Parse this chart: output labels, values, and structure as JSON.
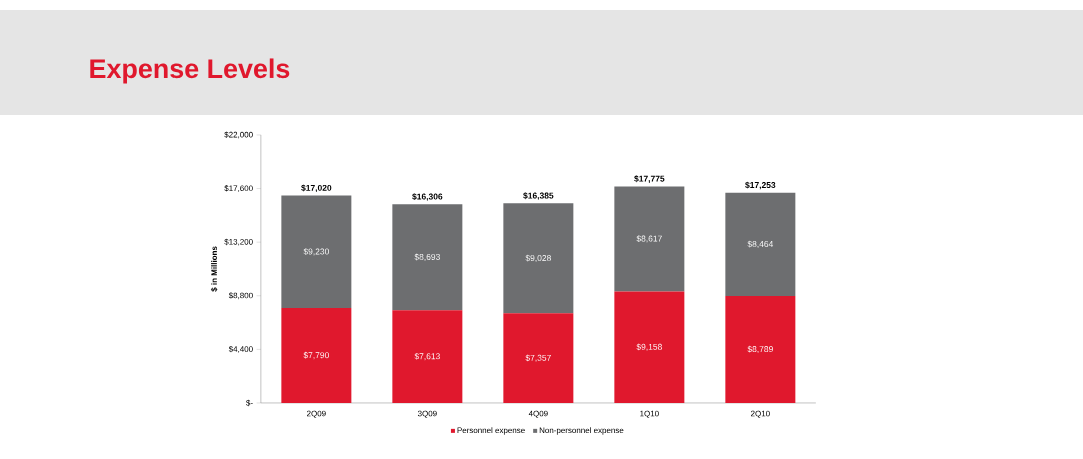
{
  "chart_data": {
    "type": "bar",
    "title": "Expense Levels",
    "ylabel": "$ in Millions",
    "stacked": true,
    "categories": [
      "2Q09",
      "3Q09",
      "4Q09",
      "1Q10",
      "2Q10"
    ],
    "series": [
      {
        "name": "Personnel expense",
        "color": "#e0182d",
        "values": [
          7790,
          7613,
          7357,
          9158,
          8789
        ],
        "value_labels": [
          "$7,790",
          "$7,613",
          "$7,357",
          "$9,158",
          "$8,789"
        ]
      },
      {
        "name": "Non-personnel expense",
        "color": "#6d6e70",
        "values": [
          9230,
          8693,
          9028,
          8617,
          8464
        ],
        "value_labels": [
          "$9,230",
          "$8,693",
          "$9,028",
          "$8,617",
          "$8,464"
        ]
      }
    ],
    "totals": [
      "$17,020",
      "$16,306",
      "$16,385",
      "$17,775",
      "$17,253"
    ],
    "ylim": [
      0,
      22000
    ],
    "yticks": [
      {
        "value": 0,
        "label": "$-"
      },
      {
        "value": 4400,
        "label": "$4,400"
      },
      {
        "value": 8800,
        "label": "$8,800"
      },
      {
        "value": 13200,
        "label": "$13,200"
      },
      {
        "value": 17600,
        "label": "$17,600"
      },
      {
        "value": 22000,
        "label": "$22,000"
      }
    ],
    "grid": false,
    "legend": "bottom"
  }
}
